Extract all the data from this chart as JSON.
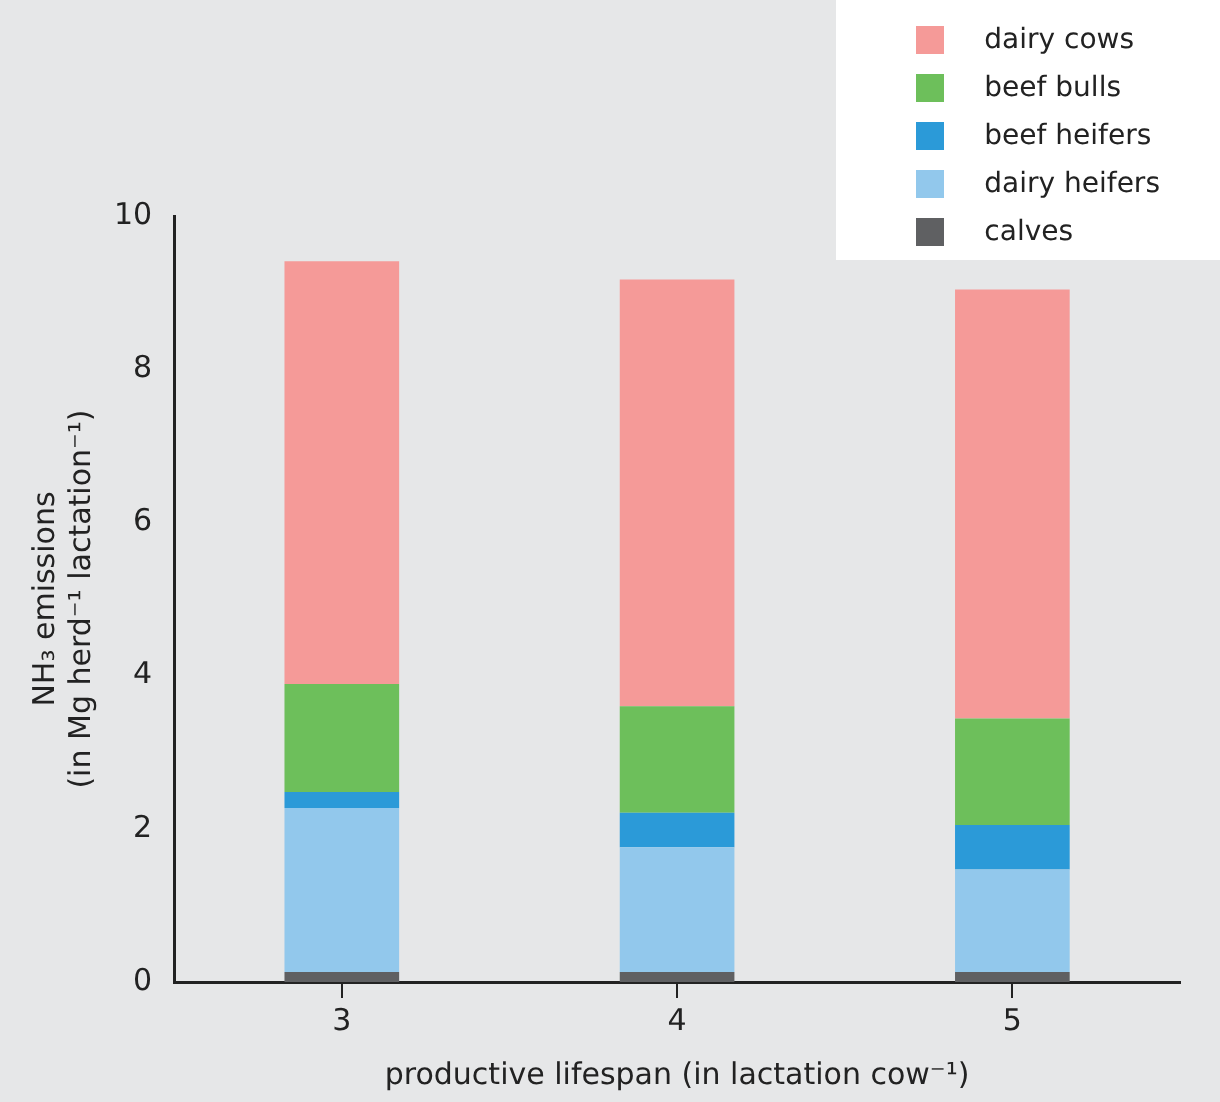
{
  "chart_data": {
    "type": "bar",
    "stacked": true,
    "categories": [
      "3",
      "4",
      "5"
    ],
    "xlabel": "productive lifespan (in lactation cow⁻¹)",
    "ylabel": "NH₃ emissions\n(in Mg herd⁻¹ lactation⁻¹)",
    "ylim": [
      0,
      10
    ],
    "yticks": [
      0,
      2,
      4,
      6,
      8,
      10
    ],
    "grid": false,
    "legend": "top right",
    "series": [
      {
        "name": "calves",
        "color": "#5f6062",
        "values": [
          0.13,
          0.13,
          0.13
        ]
      },
      {
        "name": "dairy heifers",
        "color": "#92c8ec",
        "values": [
          2.14,
          1.63,
          1.34
        ]
      },
      {
        "name": "beef heifers",
        "color": "#2b9ad8",
        "values": [
          0.21,
          0.45,
          0.58
        ]
      },
      {
        "name": "beef bulls",
        "color": "#6dbf5b",
        "values": [
          1.41,
          1.39,
          1.39
        ]
      },
      {
        "name": "dairy cows",
        "color": "#f59a98",
        "values": [
          5.52,
          5.57,
          5.6
        ]
      }
    ]
  }
}
